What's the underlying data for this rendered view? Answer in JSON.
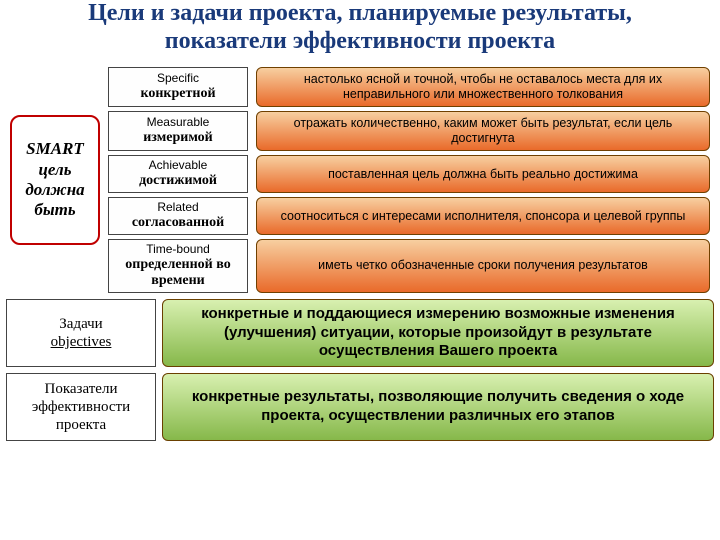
{
  "title": "Цели и задачи проекта, планируемые результаты, показатели эффективности проекта",
  "smart_label": "SMART цель должна быть",
  "colors": {
    "title": "#1a3a7a",
    "smart_border": "#c00000",
    "desc_grad_top": "#f7cfa0",
    "desc_grad_bottom": "#e96a2a",
    "desc_border": "#704000",
    "bottom_desc_border": "#6a4000",
    "bottom_grad_top": "#d8f0b0",
    "bottom_grad_bottom": "#86b84a"
  },
  "smart": [
    {
      "en": "Specific",
      "ru": "конкретной",
      "desc": "настолько ясной и точной, чтобы не оставалось места для их неправильного или множественного толкования"
    },
    {
      "en": "Measurable",
      "ru": "измеримой",
      "desc": "отражать количественно,\nкаким может быть результат, если цель достигнута"
    },
    {
      "en": "Achievable",
      "ru": "достижимой",
      "desc": "поставленная цель должна быть реально достижима"
    },
    {
      "en": "Related",
      "ru": "согласованной",
      "desc": "соотноситься с интересами\nисполнителя, спонсора и целевой группы"
    },
    {
      "en": "Time-bound",
      "ru": "определенной во времени",
      "desc": "иметь четко обозначенные сроки\nполучения результатов"
    }
  ],
  "bottom": [
    {
      "main": "Задачи",
      "sub": "objectives",
      "desc": "конкретные и поддающиеся измерению возможные изменения (улучшения) ситуации, которые произойдут в результате осуществления Вашего проекта"
    },
    {
      "main": "Показатели эффективности проекта",
      "sub": "",
      "desc": "конкретные результаты, позволяющие получить сведения о ходе проекта, осуществлении различных его этапов"
    }
  ]
}
